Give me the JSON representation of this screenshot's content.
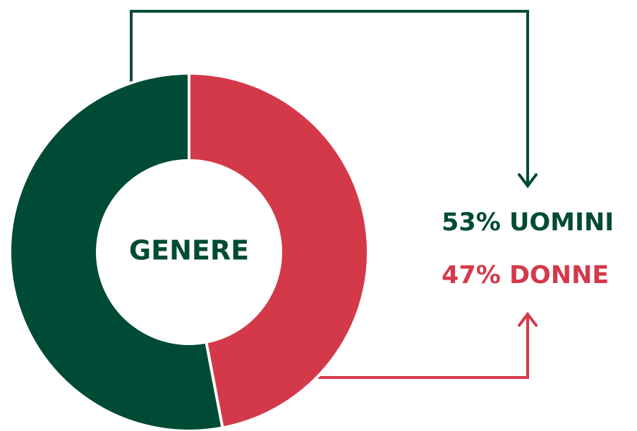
{
  "chart_data": {
    "type": "pie",
    "title": "GENERE",
    "categories": [
      "UOMINI",
      "DONNE"
    ],
    "values": [
      53,
      47
    ],
    "value_labels": [
      "53%",
      "47%"
    ],
    "colors": [
      "#004b35",
      "#d4394a"
    ],
    "donut": true
  }
}
